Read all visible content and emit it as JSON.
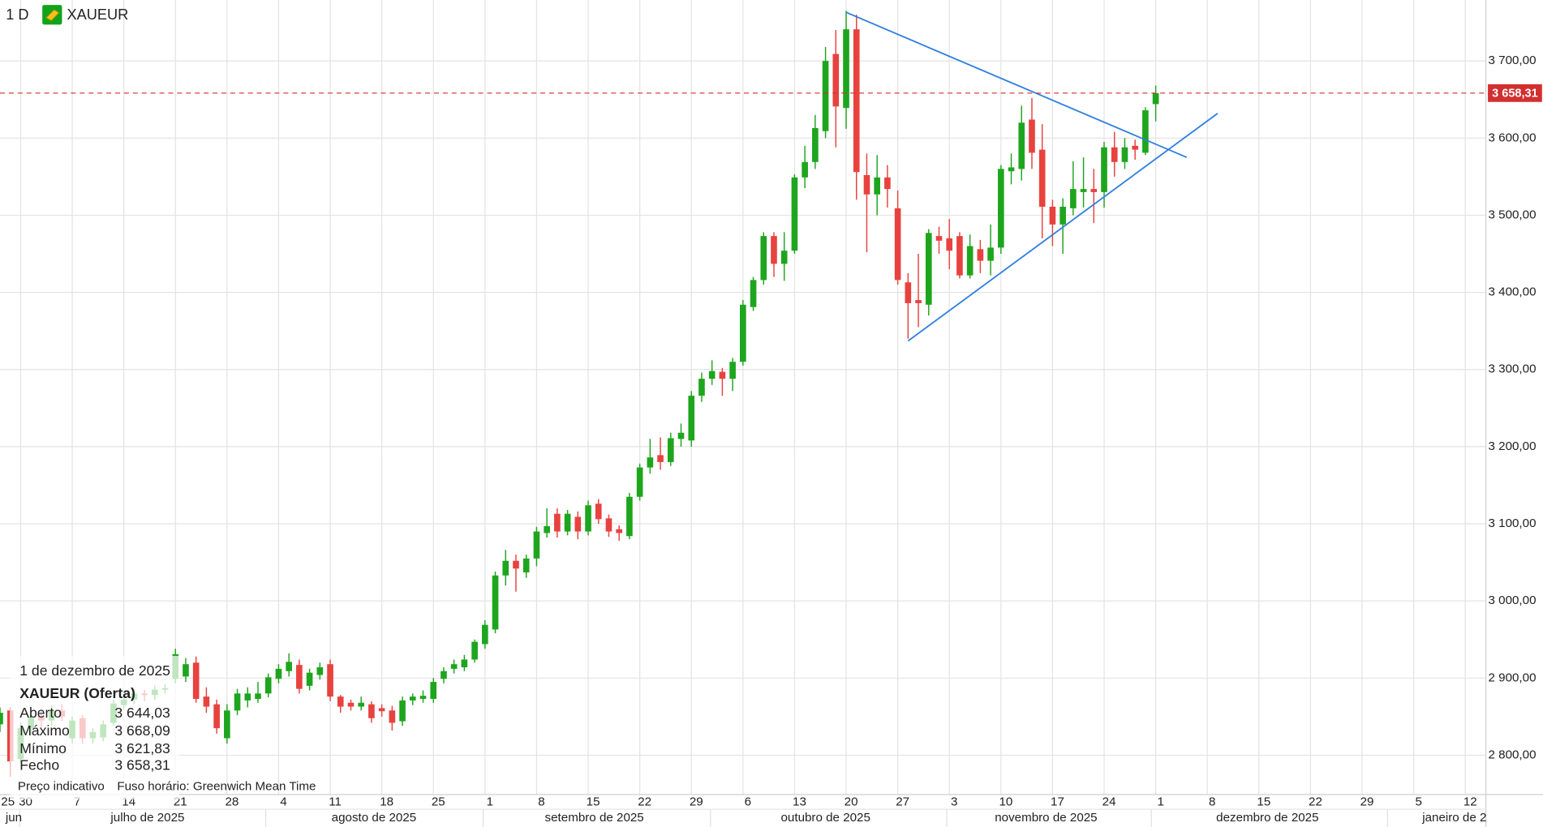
{
  "chart_data": {
    "type": "candlestick",
    "interval": "1 D",
    "symbol": "XAUEUR",
    "x": [
      "2025-06-26",
      "2025-06-27",
      "2025-06-30",
      "2025-07-01",
      "2025-07-02",
      "2025-07-03",
      "2025-07-04",
      "2025-07-07",
      "2025-07-08",
      "2025-07-09",
      "2025-07-10",
      "2025-07-11",
      "2025-07-14",
      "2025-07-15",
      "2025-07-16",
      "2025-07-17",
      "2025-07-18",
      "2025-07-21",
      "2025-07-22",
      "2025-07-23",
      "2025-07-24",
      "2025-07-25",
      "2025-07-28",
      "2025-07-29",
      "2025-07-30",
      "2025-07-31",
      "2025-08-01",
      "2025-08-04",
      "2025-08-05",
      "2025-08-06",
      "2025-08-07",
      "2025-08-08",
      "2025-08-11",
      "2025-08-12",
      "2025-08-13",
      "2025-08-14",
      "2025-08-15",
      "2025-08-18",
      "2025-08-19",
      "2025-08-20",
      "2025-08-21",
      "2025-08-22",
      "2025-08-25",
      "2025-08-26",
      "2025-08-27",
      "2025-08-28",
      "2025-08-29",
      "2025-09-01",
      "2025-09-02",
      "2025-09-03",
      "2025-09-04",
      "2025-09-05",
      "2025-09-08",
      "2025-09-09",
      "2025-09-10",
      "2025-09-11",
      "2025-09-12",
      "2025-09-15",
      "2025-09-16",
      "2025-09-17",
      "2025-09-18",
      "2025-09-19",
      "2025-09-22",
      "2025-09-23",
      "2025-09-24",
      "2025-09-25",
      "2025-09-26",
      "2025-09-29",
      "2025-09-30",
      "2025-10-01",
      "2025-10-02",
      "2025-10-03",
      "2025-10-06",
      "2025-10-07",
      "2025-10-08",
      "2025-10-09",
      "2025-10-10",
      "2025-10-13",
      "2025-10-14",
      "2025-10-15",
      "2025-10-16",
      "2025-10-17",
      "2025-10-20",
      "2025-10-21",
      "2025-10-22",
      "2025-10-23",
      "2025-10-24",
      "2025-10-27",
      "2025-10-28",
      "2025-10-29",
      "2025-10-30",
      "2025-10-31",
      "2025-11-03",
      "2025-11-04",
      "2025-11-05",
      "2025-11-06",
      "2025-11-07",
      "2025-11-10",
      "2025-11-11",
      "2025-11-12",
      "2025-11-13",
      "2025-11-14",
      "2025-11-17",
      "2025-11-18",
      "2025-11-19",
      "2025-11-20",
      "2025-11-21",
      "2025-11-24",
      "2025-11-25",
      "2025-11-26",
      "2025-11-27",
      "2025-11-28",
      "2025-12-01"
    ],
    "open": [
      2840,
      2858,
      2795,
      2835,
      2850,
      2845,
      2858,
      2822,
      2848,
      2822,
      2823,
      2842,
      2865,
      2872,
      2880,
      2878,
      2885,
      2899,
      2902,
      2920,
      2876,
      2866,
      2822,
      2858,
      2871,
      2873,
      2880,
      2899,
      2909,
      2917,
      2890,
      2904,
      2918,
      2876,
      2868,
      2863,
      2866,
      2861,
      2858,
      2844,
      2871,
      2873,
      2873,
      2899,
      2912,
      2914,
      2924,
      2944,
      2963,
      3033,
      3052,
      3037,
      3055,
      3088,
      3113,
      3090,
      3109,
      3090,
      3126,
      3107,
      3093,
      3084,
      3135,
      3173,
      3189,
      3180,
      3210,
      3208,
      3266,
      3288,
      3297,
      3288,
      3310,
      3381,
      3416,
      3473,
      3437,
      3454,
      3549,
      3569,
      3609,
      3709,
      3639,
      3741,
      3552,
      3527,
      3549,
      3509,
      3413,
      3390,
      3384,
      3473,
      3470,
      3473,
      3422,
      3456,
      3441,
      3458,
      3557,
      3560,
      3624,
      3585,
      3511,
      3488,
      3509,
      3530,
      3534,
      3530,
      3588,
      3569,
      3590,
      3581,
      3644.03
    ],
    "high": [
      2862,
      2862,
      2842,
      2858,
      2860,
      2864,
      2866,
      2850,
      2852,
      2835,
      2845,
      2872,
      2878,
      2886,
      2885,
      2890,
      2892,
      2938,
      2926,
      2928,
      2888,
      2872,
      2866,
      2886,
      2888,
      2895,
      2906,
      2918,
      2932,
      2924,
      2912,
      2920,
      2924,
      2878,
      2872,
      2876,
      2870,
      2866,
      2864,
      2876,
      2880,
      2884,
      2900,
      2914,
      2924,
      2930,
      2950,
      2975,
      3038,
      3066,
      3060,
      3060,
      3096,
      3120,
      3120,
      3118,
      3116,
      3130,
      3132,
      3112,
      3098,
      3140,
      3178,
      3210,
      3212,
      3218,
      3230,
      3272,
      3296,
      3312,
      3302,
      3315,
      3390,
      3420,
      3478,
      3478,
      3478,
      3553,
      3590,
      3630,
      3718,
      3740,
      3765,
      3760,
      3580,
      3578,
      3565,
      3532,
      3425,
      3450,
      3482,
      3485,
      3495,
      3478,
      3475,
      3468,
      3488,
      3565,
      3580,
      3642,
      3652,
      3618,
      3520,
      3522,
      3570,
      3575,
      3560,
      3595,
      3608,
      3600,
      3598,
      3640,
      3668.09
    ],
    "low": [
      2830,
      2772,
      2790,
      2826,
      2836,
      2838,
      2844,
      2815,
      2815,
      2815,
      2818,
      2838,
      2860,
      2866,
      2870,
      2872,
      2880,
      2893,
      2895,
      2868,
      2855,
      2828,
      2815,
      2852,
      2862,
      2868,
      2875,
      2893,
      2902,
      2880,
      2884,
      2898,
      2870,
      2855,
      2858,
      2858,
      2842,
      2850,
      2832,
      2838,
      2865,
      2868,
      2868,
      2893,
      2906,
      2909,
      2920,
      2938,
      2958,
      3020,
      3012,
      3030,
      3045,
      3082,
      3082,
      3085,
      3080,
      3085,
      3100,
      3083,
      3078,
      3080,
      3130,
      3165,
      3170,
      3175,
      3200,
      3200,
      3258,
      3280,
      3266,
      3272,
      3305,
      3376,
      3410,
      3420,
      3415,
      3450,
      3535,
      3560,
      3600,
      3588,
      3612,
      3520,
      3452,
      3500,
      3510,
      3410,
      3340,
      3355,
      3370,
      3450,
      3430,
      3418,
      3418,
      3425,
      3422,
      3450,
      3540,
      3545,
      3560,
      3470,
      3460,
      3450,
      3500,
      3510,
      3490,
      3510,
      3550,
      3560,
      3572,
      3578,
      3621.83
    ],
    "close": [
      2855,
      2792,
      2835,
      2850,
      2845,
      2858,
      2850,
      2845,
      2822,
      2830,
      2840,
      2867,
      2872,
      2880,
      2878,
      2885,
      2887,
      2931,
      2918,
      2873,
      2863,
      2835,
      2858,
      2880,
      2880,
      2880,
      2901,
      2912,
      2921,
      2886,
      2907,
      2914,
      2876,
      2863,
      2863,
      2868,
      2848,
      2857,
      2842,
      2871,
      2876,
      2877,
      2895,
      2909,
      2918,
      2924,
      2947,
      2969,
      3033,
      3052,
      3042,
      3055,
      3090,
      3097,
      3090,
      3113,
      3090,
      3124,
      3106,
      3090,
      3088,
      3135,
      3173,
      3186,
      3180,
      3211,
      3218,
      3266,
      3288,
      3298,
      3288,
      3310,
      3384,
      3416,
      3473,
      3437,
      3454,
      3549,
      3569,
      3613,
      3700,
      3641,
      3741,
      3556,
      3527,
      3549,
      3534,
      3416,
      3386,
      3386,
      3477,
      3467,
      3454,
      3422,
      3460,
      3441,
      3458,
      3560,
      3562,
      3620,
      3581,
      3511,
      3488,
      3511,
      3534,
      3534,
      3530,
      3588,
      3569,
      3588,
      3585,
      3636,
      3658.31
    ],
    "up_color": "#1ea51e",
    "down_color": "#e8423f",
    "xlim": [
      "2025-06-26",
      "2026-01-14"
    ],
    "xticks": [
      {
        "value": "2025-06-25",
        "label": "25"
      },
      {
        "value": "2025-06-30",
        "label": "30"
      },
      {
        "value": "2025-07-07",
        "label": "7"
      },
      {
        "value": "2025-07-14",
        "label": "14"
      },
      {
        "value": "2025-07-21",
        "label": "21"
      },
      {
        "value": "2025-07-28",
        "label": "28"
      },
      {
        "value": "2025-08-04",
        "label": "4"
      },
      {
        "value": "2025-08-11",
        "label": "11"
      },
      {
        "value": "2025-08-18",
        "label": "18"
      },
      {
        "value": "2025-08-25",
        "label": "25"
      },
      {
        "value": "2025-09-01",
        "label": "1"
      },
      {
        "value": "2025-09-08",
        "label": "8"
      },
      {
        "value": "2025-09-15",
        "label": "15"
      },
      {
        "value": "2025-09-22",
        "label": "22"
      },
      {
        "value": "2025-09-29",
        "label": "29"
      },
      {
        "value": "2025-10-06",
        "label": "6"
      },
      {
        "value": "2025-10-13",
        "label": "13"
      },
      {
        "value": "2025-10-20",
        "label": "20"
      },
      {
        "value": "2025-10-27",
        "label": "27"
      },
      {
        "value": "2025-11-03",
        "label": "3"
      },
      {
        "value": "2025-11-10",
        "label": "10"
      },
      {
        "value": "2025-11-17",
        "label": "17"
      },
      {
        "value": "2025-11-24",
        "label": "24"
      },
      {
        "value": "2025-12-01",
        "label": "1"
      },
      {
        "value": "2025-12-08",
        "label": "8"
      },
      {
        "value": "2025-12-15",
        "label": "15"
      },
      {
        "value": "2025-12-22",
        "label": "22"
      },
      {
        "value": "2025-12-29",
        "label": "29"
      },
      {
        "value": "2026-01-05",
        "label": "5"
      },
      {
        "value": "2026-01-12",
        "label": "12"
      }
    ],
    "month_labels": [
      "jun",
      "julho de 2025",
      "agosto de 2025",
      "setembro de 2025",
      "outubro de 2025",
      "novembro de 2025",
      "dezembro de 2025",
      "janeiro de 2"
    ],
    "ylim": [
      2749,
      3779
    ],
    "yticks": [
      {
        "value": 2800,
        "label": "2 800,00"
      },
      {
        "value": 2900,
        "label": "2 900,00"
      },
      {
        "value": 3000,
        "label": "3 000,00"
      },
      {
        "value": 3100,
        "label": "3 100,00"
      },
      {
        "value": 3200,
        "label": "3 200,00"
      },
      {
        "value": 3300,
        "label": "3 300,00"
      },
      {
        "value": 3400,
        "label": "3 400,00"
      },
      {
        "value": 3500,
        "label": "3 500,00"
      },
      {
        "value": 3600,
        "label": "3 600,00"
      },
      {
        "value": 3700,
        "label": "3 700,00"
      }
    ],
    "grid": true,
    "last_price": {
      "value": 3658.31,
      "label": "3 658,31",
      "color": "#d32f2f"
    },
    "trendlines": [
      {
        "color": "#2f7fe0",
        "points": [
          [
            "2025-10-20",
            3763
          ],
          [
            "2025-12-04",
            3575
          ]
        ]
      },
      {
        "color": "#2f7fe0",
        "points": [
          [
            "2025-10-28",
            3337
          ],
          [
            "2025-12-09",
            3632
          ]
        ]
      }
    ],
    "info_panel": {
      "date": "1 de dezembro de 2025",
      "title": "XAUEUR (Oferta)",
      "rows": [
        {
          "label": "Aberto",
          "value": "3 644,03"
        },
        {
          "label": "Máximo",
          "value": "3 668,09"
        },
        {
          "label": "Mínimo",
          "value": "3 621,83"
        },
        {
          "label": "Fecho",
          "value": "3 658,31"
        }
      ],
      "notes": [
        "Preço indicativo",
        "Fuso horário: Greenwich Mean Time"
      ]
    }
  }
}
